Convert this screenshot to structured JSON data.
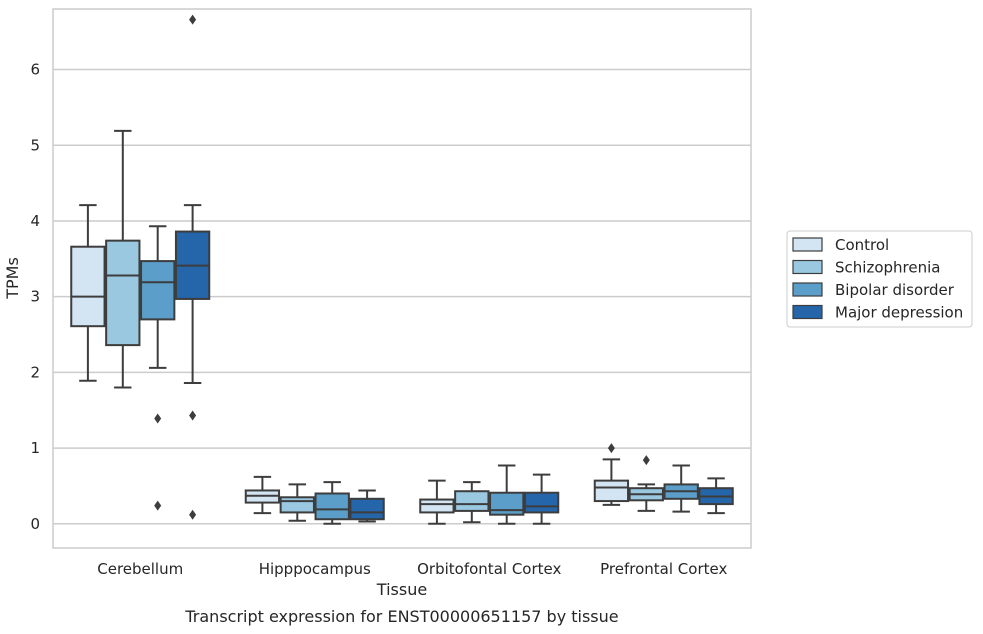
{
  "caption": "Transcript expression for ENST00000651157 by tissue",
  "chart_data": {
    "type": "box",
    "xlabel": "Tissue",
    "ylabel": "TPMs",
    "ylim": [
      -0.32,
      6.8
    ],
    "yticks": [
      0,
      1,
      2,
      3,
      4,
      5,
      6
    ],
    "grid": true,
    "legend_position": "right",
    "categories": [
      "Cerebellum",
      "Hipppocampus",
      "Orbitofontal Cortex",
      "Prefrontal Cortex"
    ],
    "series": [
      {
        "name": "Control",
        "color": "#d3e4f3",
        "boxes": [
          {
            "whislo": 1.89,
            "q1": 2.61,
            "med": 3.0,
            "q3": 3.66,
            "whishi": 4.21,
            "fliers": []
          },
          {
            "whislo": 0.14,
            "q1": 0.28,
            "med": 0.37,
            "q3": 0.44,
            "whishi": 0.62,
            "fliers": []
          },
          {
            "whislo": 0.0,
            "q1": 0.15,
            "med": 0.26,
            "q3": 0.32,
            "whishi": 0.57,
            "fliers": []
          },
          {
            "whislo": 0.25,
            "q1": 0.3,
            "med": 0.48,
            "q3": 0.57,
            "whishi": 0.85,
            "fliers": [
              1.0
            ]
          }
        ]
      },
      {
        "name": "Schizophrenia",
        "color": "#9ac8e0",
        "boxes": [
          {
            "whislo": 1.8,
            "q1": 2.36,
            "med": 3.28,
            "q3": 3.74,
            "whishi": 5.19,
            "fliers": []
          },
          {
            "whislo": 0.04,
            "q1": 0.15,
            "med": 0.3,
            "q3": 0.35,
            "whishi": 0.52,
            "fliers": []
          },
          {
            "whislo": 0.02,
            "q1": 0.17,
            "med": 0.26,
            "q3": 0.43,
            "whishi": 0.55,
            "fliers": []
          },
          {
            "whislo": 0.17,
            "q1": 0.31,
            "med": 0.39,
            "q3": 0.47,
            "whishi": 0.52,
            "fliers": [
              0.84
            ]
          }
        ]
      },
      {
        "name": "Bipolar disorder",
        "color": "#5a9ec9",
        "boxes": [
          {
            "whislo": 2.06,
            "q1": 2.7,
            "med": 3.19,
            "q3": 3.47,
            "whishi": 3.93,
            "fliers": [
              1.39,
              0.24
            ]
          },
          {
            "whislo": 0.0,
            "q1": 0.06,
            "med": 0.19,
            "q3": 0.4,
            "whishi": 0.55,
            "fliers": []
          },
          {
            "whislo": 0.0,
            "q1": 0.12,
            "med": 0.18,
            "q3": 0.41,
            "whishi": 0.77,
            "fliers": []
          },
          {
            "whislo": 0.16,
            "q1": 0.33,
            "med": 0.43,
            "q3": 0.52,
            "whishi": 0.77,
            "fliers": []
          }
        ]
      },
      {
        "name": "Major depression",
        "color": "#2565a9",
        "boxes": [
          {
            "whislo": 1.86,
            "q1": 2.97,
            "med": 3.41,
            "q3": 3.86,
            "whishi": 4.21,
            "fliers": [
              6.66,
              1.43,
              0.12
            ]
          },
          {
            "whislo": 0.03,
            "q1": 0.06,
            "med": 0.15,
            "q3": 0.33,
            "whishi": 0.44,
            "fliers": []
          },
          {
            "whislo": 0.0,
            "q1": 0.15,
            "med": 0.23,
            "q3": 0.41,
            "whishi": 0.65,
            "fliers": []
          },
          {
            "whislo": 0.14,
            "q1": 0.26,
            "med": 0.36,
            "q3": 0.47,
            "whishi": 0.6,
            "fliers": []
          }
        ]
      }
    ]
  }
}
